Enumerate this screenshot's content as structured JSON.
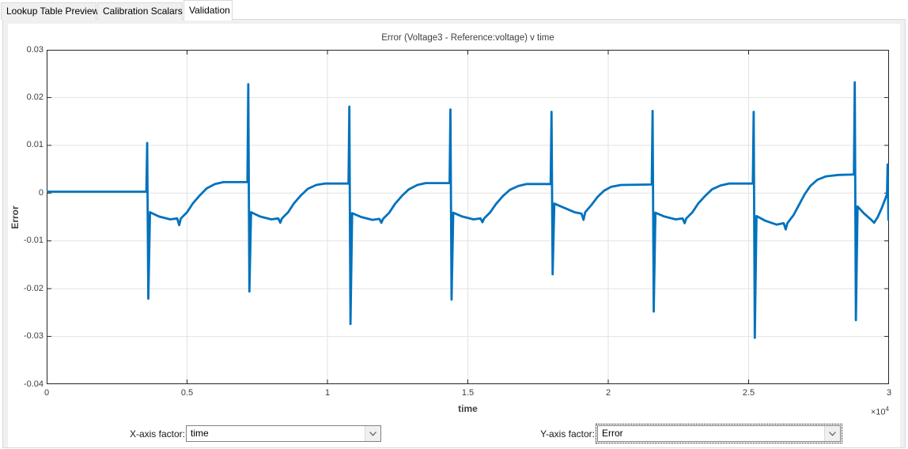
{
  "tabs": [
    {
      "label": "Lookup Table Preview",
      "active": false
    },
    {
      "label": "Calibration Scalars",
      "active": false
    },
    {
      "label": "Validation",
      "active": true
    }
  ],
  "controls": {
    "x_label": "X-axis factor:",
    "x_value": "time",
    "y_label": "Y-axis factor:",
    "y_value": "Error"
  },
  "chart_data": {
    "type": "line",
    "title": "Error (Voltage3 - Reference:voltage) v time",
    "xlabel": "time",
    "ylabel": "Error",
    "x_exponent": {
      "text": "×10",
      "exponent": "4"
    },
    "xlim": [
      0,
      3
    ],
    "ylim": [
      -0.04,
      0.03
    ],
    "x_ticks": [
      0,
      0.5,
      1,
      1.5,
      2,
      2.5,
      3
    ],
    "x_tick_labels": [
      "0",
      "0.5",
      "1",
      "1.5",
      "2",
      "2.5",
      "3"
    ],
    "y_ticks": [
      -0.04,
      -0.03,
      -0.02,
      -0.01,
      0,
      0.01,
      0.02,
      0.03
    ],
    "y_tick_labels": [
      "-0.04",
      "-0.03",
      "-0.02",
      "-0.01",
      "0",
      "0.01",
      "0.02",
      "0.03"
    ],
    "grid": true,
    "legend": "none",
    "line_color": "#0072BD",
    "grid_color": "#e2e2e2",
    "axis_color": "#262626",
    "series": [
      {
        "name": "Error",
        "points": [
          [
            0,
            0.0003
          ],
          [
            0.355,
            0.0003
          ],
          [
            0.358,
            0.0105
          ],
          [
            0.362,
            -0.0221
          ],
          [
            0.368,
            -0.004
          ],
          [
            0.4,
            -0.0049
          ],
          [
            0.44,
            -0.0055
          ],
          [
            0.465,
            -0.0053
          ],
          [
            0.472,
            -0.0067
          ],
          [
            0.478,
            -0.0053
          ],
          [
            0.5,
            -0.004
          ],
          [
            0.52,
            -0.0022
          ],
          [
            0.545,
            -0.0005
          ],
          [
            0.57,
            0.001
          ],
          [
            0.6,
            0.0019
          ],
          [
            0.63,
            0.0023
          ],
          [
            0.715,
            0.0023
          ],
          [
            0.718,
            0.0228
          ],
          [
            0.722,
            -0.0206
          ],
          [
            0.728,
            -0.004
          ],
          [
            0.76,
            -0.0049
          ],
          [
            0.8,
            -0.0055
          ],
          [
            0.825,
            -0.0053
          ],
          [
            0.832,
            -0.0062
          ],
          [
            0.838,
            -0.0053
          ],
          [
            0.86,
            -0.004
          ],
          [
            0.88,
            -0.0022
          ],
          [
            0.905,
            -0.0005
          ],
          [
            0.93,
            0.0009
          ],
          [
            0.96,
            0.0017
          ],
          [
            0.99,
            0.002
          ],
          [
            1.075,
            0.002
          ],
          [
            1.078,
            0.0181
          ],
          [
            1.082,
            -0.0274
          ],
          [
            1.088,
            -0.0042
          ],
          [
            1.12,
            -0.005
          ],
          [
            1.16,
            -0.0056
          ],
          [
            1.185,
            -0.0054
          ],
          [
            1.192,
            -0.0062
          ],
          [
            1.198,
            -0.0054
          ],
          [
            1.22,
            -0.0041
          ],
          [
            1.24,
            -0.0023
          ],
          [
            1.265,
            -0.0006
          ],
          [
            1.29,
            0.0008
          ],
          [
            1.32,
            0.0017
          ],
          [
            1.35,
            0.0021
          ],
          [
            1.435,
            0.0021
          ],
          [
            1.438,
            0.0175
          ],
          [
            1.442,
            -0.0223
          ],
          [
            1.448,
            -0.0041
          ],
          [
            1.48,
            -0.0049
          ],
          [
            1.52,
            -0.0055
          ],
          [
            1.545,
            -0.0053
          ],
          [
            1.552,
            -0.0061
          ],
          [
            1.558,
            -0.0053
          ],
          [
            1.58,
            -0.004
          ],
          [
            1.6,
            -0.0023
          ],
          [
            1.625,
            -0.0006
          ],
          [
            1.65,
            0.0007
          ],
          [
            1.68,
            0.0015
          ],
          [
            1.71,
            0.0019
          ],
          [
            1.795,
            0.0019
          ],
          [
            1.798,
            0.017
          ],
          [
            1.802,
            -0.017
          ],
          [
            1.808,
            -0.0022
          ],
          [
            1.84,
            -0.003
          ],
          [
            1.88,
            -0.004
          ],
          [
            1.905,
            -0.0043
          ],
          [
            1.912,
            -0.0056
          ],
          [
            1.918,
            -0.004
          ],
          [
            1.94,
            -0.0025
          ],
          [
            1.962,
            -0.0008
          ],
          [
            1.985,
            0.0005
          ],
          [
            2.01,
            0.0013
          ],
          [
            2.045,
            0.0017
          ],
          [
            2.155,
            0.0018
          ],
          [
            2.158,
            0.0172
          ],
          [
            2.162,
            -0.0248
          ],
          [
            2.168,
            -0.0041
          ],
          [
            2.2,
            -0.0049
          ],
          [
            2.24,
            -0.0055
          ],
          [
            2.265,
            -0.0053
          ],
          [
            2.272,
            -0.0063
          ],
          [
            2.278,
            -0.0053
          ],
          [
            2.3,
            -0.004
          ],
          [
            2.32,
            -0.0022
          ],
          [
            2.345,
            -0.0006
          ],
          [
            2.37,
            0.0008
          ],
          [
            2.4,
            0.0016
          ],
          [
            2.43,
            0.002
          ],
          [
            2.515,
            0.002
          ],
          [
            2.518,
            0.017
          ],
          [
            2.522,
            -0.0303
          ],
          [
            2.528,
            -0.0048
          ],
          [
            2.56,
            -0.0058
          ],
          [
            2.6,
            -0.0066
          ],
          [
            2.625,
            -0.0063
          ],
          [
            2.632,
            -0.0076
          ],
          [
            2.638,
            -0.0063
          ],
          [
            2.66,
            -0.0046
          ],
          [
            2.68,
            -0.0024
          ],
          [
            2.7,
            -0.0002
          ],
          [
            2.72,
            0.0015
          ],
          [
            2.745,
            0.0028
          ],
          [
            2.775,
            0.0035
          ],
          [
            2.82,
            0.0038
          ],
          [
            2.875,
            0.0039
          ],
          [
            2.878,
            0.0232
          ],
          [
            2.882,
            -0.0266
          ],
          [
            2.888,
            -0.0028
          ],
          [
            2.91,
            -0.0042
          ],
          [
            2.935,
            -0.0055
          ],
          [
            2.947,
            -0.0062
          ],
          [
            2.96,
            -0.005
          ],
          [
            2.975,
            -0.003
          ],
          [
            2.988,
            -0.001
          ],
          [
            2.993,
            -0.0002
          ],
          [
            2.995,
            0.006
          ],
          [
            2.998,
            -0.0056
          ],
          [
            3,
            -0.005
          ]
        ]
      }
    ]
  }
}
